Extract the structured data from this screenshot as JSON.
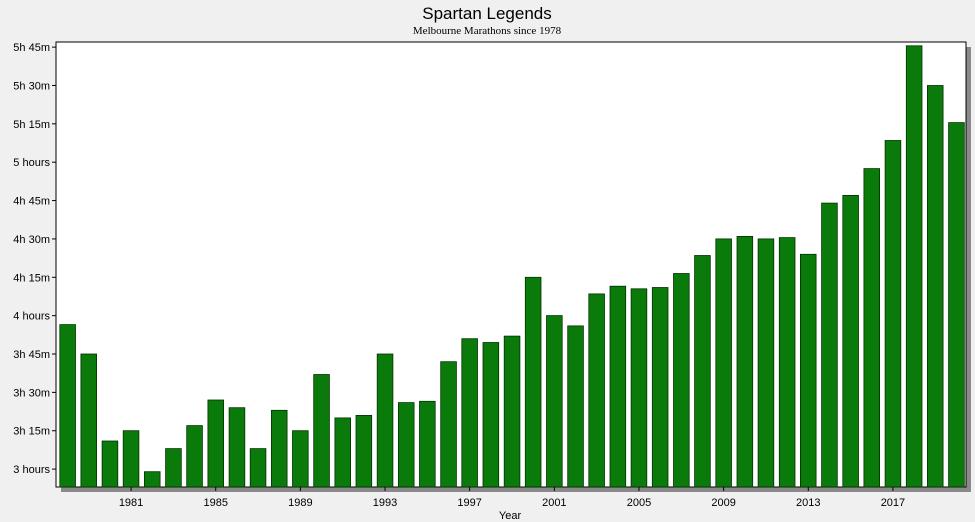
{
  "chart_data": {
    "type": "bar",
    "title": "Spartan Legends",
    "subtitle": "Melbourne Marathons since 1978",
    "xlabel": "Year",
    "ylabel": "",
    "grid": false,
    "legend": "none",
    "bar_color": "#0a7a0a",
    "bar_edge_color": "#003300",
    "plot_background": "#ffffff",
    "shadow_color": "#8a8a8a",
    "ylim_minutes": [
      173,
      347
    ],
    "y_ticks": [
      {
        "value": 180,
        "label": "3 hours"
      },
      {
        "value": 195,
        "label": "3h 15m"
      },
      {
        "value": 210,
        "label": "3h 30m"
      },
      {
        "value": 225,
        "label": "3h 45m"
      },
      {
        "value": 240,
        "label": "4 hours"
      },
      {
        "value": 255,
        "label": "4h 15m"
      },
      {
        "value": 270,
        "label": "4h 30m"
      },
      {
        "value": 285,
        "label": "4h 45m"
      },
      {
        "value": 300,
        "label": "5 hours"
      },
      {
        "value": 315,
        "label": "5h 15m"
      },
      {
        "value": 330,
        "label": "5h 30m"
      },
      {
        "value": 345,
        "label": "5h 45m"
      }
    ],
    "x_ticks": [
      "1981",
      "1985",
      "1989",
      "1993",
      "1997",
      "2001",
      "2005",
      "2009",
      "2013",
      "2017"
    ],
    "units": "minutes",
    "categories": [
      "1978",
      "1979",
      "1980",
      "1981",
      "1982",
      "1983",
      "1984",
      "1985",
      "1986",
      "1987",
      "1988",
      "1989",
      "1990",
      "1991",
      "1992",
      "1993",
      "1994",
      "1995",
      "1996",
      "1997",
      "1998",
      "1999",
      "2000",
      "2001",
      "2002",
      "2003",
      "2004",
      "2005",
      "2006",
      "2007",
      "2008",
      "2009",
      "2010",
      "2011",
      "2012",
      "2013",
      "2014",
      "2015",
      "2016",
      "2017",
      "2018",
      "2019",
      "2020"
    ],
    "values": [
      236.5,
      225,
      191,
      195,
      179,
      188,
      197,
      207,
      204,
      188,
      203,
      195,
      217,
      200,
      201,
      225,
      206,
      206.5,
      222,
      231,
      229.5,
      232,
      255,
      240,
      236,
      248.5,
      251.5,
      250.5,
      251,
      256.5,
      263.5,
      270,
      271,
      270,
      270.5,
      264,
      284,
      287,
      297.5,
      308.5,
      345.5,
      330,
      315.5
    ]
  }
}
